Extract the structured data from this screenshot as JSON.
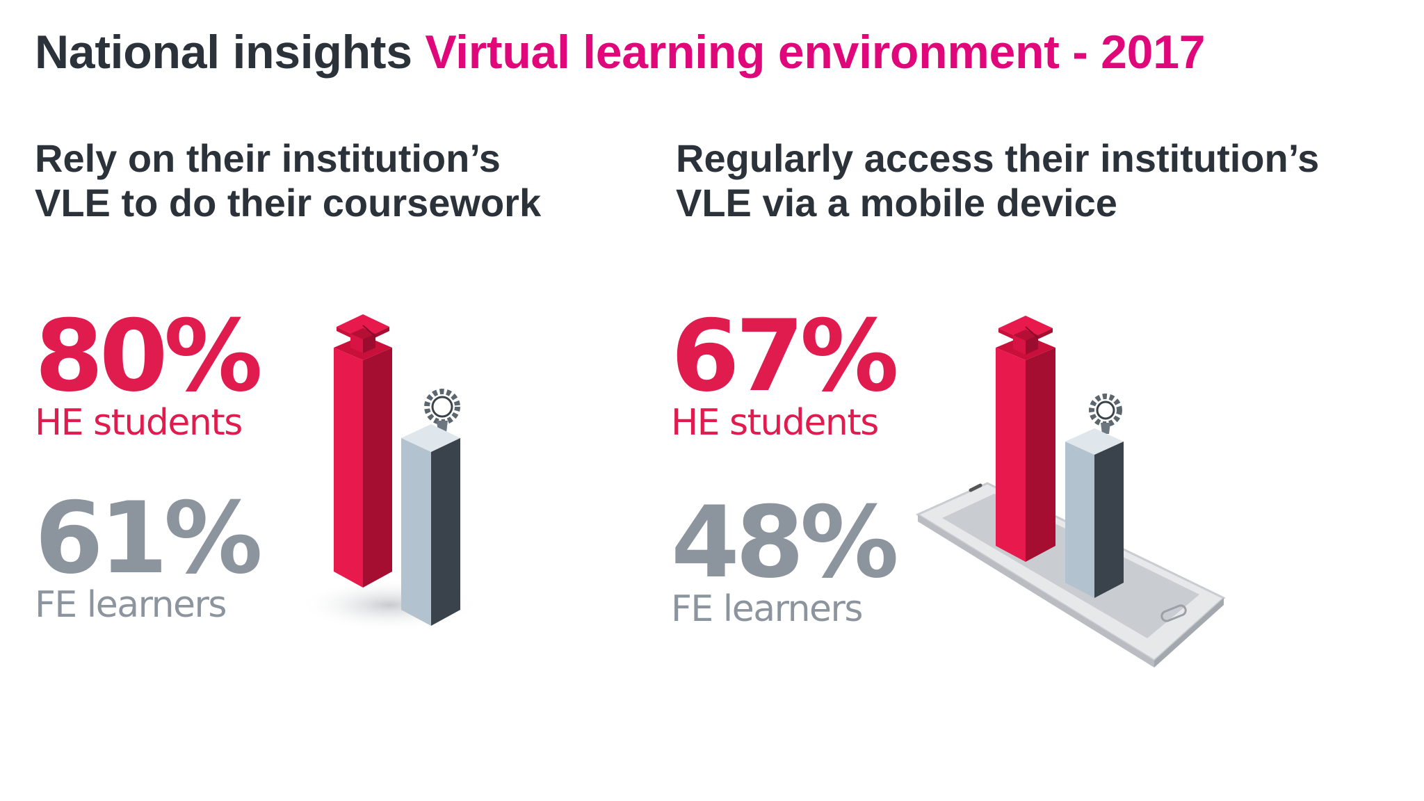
{
  "title": {
    "lead": "National insights",
    "accent": "Virtual learning environment - 2017"
  },
  "left_panel": {
    "heading_line1": "Rely on their institution’s",
    "heading_line2": "VLE to do their coursework",
    "he": {
      "value": "80%",
      "label": "HE students"
    },
    "fe": {
      "value": "61%",
      "label": "FE learners"
    },
    "illustration_icon": "bar-columns-with-mortarboard-and-gear"
  },
  "right_panel": {
    "heading_line1": "Regularly access their institution’s",
    "heading_line2": "VLE via a mobile device",
    "he": {
      "value": "67%",
      "label": "HE students"
    },
    "fe": {
      "value": "48%",
      "label": "FE learners"
    },
    "illustration_icon": "smartphone-with-bar-columns"
  },
  "colors": {
    "heading": "#2b323a",
    "accent": "#e0077a",
    "he": "#e01b4e",
    "fe": "#8c949d"
  }
}
